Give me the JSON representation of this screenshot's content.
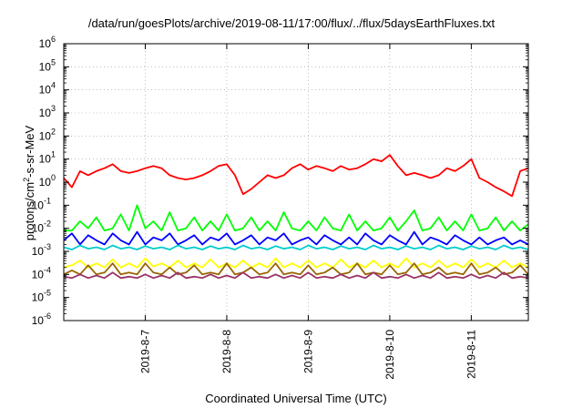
{
  "chart_data": {
    "type": "line",
    "title": "/data/run/goesPlots/archive/2019-08-11/17:00/flux/../flux/5daysEarthFluxes.txt",
    "xlabel": "Coordinated Universal Time (UTC)",
    "ylabel": {
      "prefix": "protons/cm",
      "sup": "2",
      "suffix": "-s-sr-MeV"
    },
    "yscale": "log",
    "ylim": [
      1e-06,
      1000000.0
    ],
    "xlim": [
      0,
      5.7
    ],
    "y_ticks": [
      {
        "exp": -6,
        "label": "10",
        "sup": "-6"
      },
      {
        "exp": -5,
        "label": "10",
        "sup": "-5"
      },
      {
        "exp": -4,
        "label": "10",
        "sup": "-4"
      },
      {
        "exp": -3,
        "label": "10",
        "sup": "-3"
      },
      {
        "exp": -2,
        "label": "10",
        "sup": "-2"
      },
      {
        "exp": -1,
        "label": "10",
        "sup": "-1"
      },
      {
        "exp": 0,
        "label": "10",
        "sup": "0"
      },
      {
        "exp": 1,
        "label": "10",
        "sup": "1"
      },
      {
        "exp": 2,
        "label": "10",
        "sup": "2"
      },
      {
        "exp": 3,
        "label": "10",
        "sup": "3"
      },
      {
        "exp": 4,
        "label": "10",
        "sup": "4"
      },
      {
        "exp": 5,
        "label": "10",
        "sup": "5"
      },
      {
        "exp": 6,
        "label": "10",
        "sup": "6"
      }
    ],
    "x_ticks": [
      {
        "day": 1,
        "label": "2019-8-7"
      },
      {
        "day": 2,
        "label": "2019-8-8"
      },
      {
        "day": 3,
        "label": "2019-8-9"
      },
      {
        "day": 4,
        "label": "2019-8-10"
      },
      {
        "day": 5,
        "label": "2019-8-11"
      }
    ],
    "grid": true,
    "series": [
      {
        "color": "#ff0000",
        "x": [
          0,
          0.1,
          0.2,
          0.3,
          0.4,
          0.5,
          0.6,
          0.7,
          0.8,
          0.9,
          1.0,
          1.1,
          1.2,
          1.3,
          1.4,
          1.5,
          1.6,
          1.7,
          1.8,
          1.9,
          2.0,
          2.1,
          2.2,
          2.3,
          2.4,
          2.5,
          2.6,
          2.7,
          2.8,
          2.9,
          3.0,
          3.1,
          3.2,
          3.3,
          3.4,
          3.5,
          3.6,
          3.7,
          3.8,
          3.9,
          4.0,
          4.1,
          4.2,
          4.3,
          4.4,
          4.5,
          4.6,
          4.7,
          4.8,
          4.9,
          5.0,
          5.1,
          5.2,
          5.3,
          5.4,
          5.5,
          5.6,
          5.7
        ],
        "y": [
          1.5,
          0.6,
          3,
          2,
          3,
          4,
          6,
          3,
          2.5,
          3,
          4,
          5,
          4,
          2,
          1.5,
          1.3,
          1.5,
          2,
          3,
          5,
          6,
          2,
          0.3,
          0.5,
          1,
          2,
          1.5,
          2,
          4,
          6,
          3.5,
          5,
          4,
          3,
          5,
          3.5,
          4,
          6,
          10,
          8,
          15,
          5,
          2,
          2.5,
          2,
          1.5,
          2,
          4,
          3,
          5,
          10,
          1.5,
          1,
          0.6,
          0.4,
          0.25,
          3,
          4
        ]
      },
      {
        "color": "#00ff00",
        "x": [
          0,
          0.1,
          0.2,
          0.3,
          0.4,
          0.5,
          0.6,
          0.7,
          0.8,
          0.9,
          1.0,
          1.1,
          1.2,
          1.3,
          1.4,
          1.5,
          1.6,
          1.7,
          1.8,
          1.9,
          2.0,
          2.1,
          2.2,
          2.3,
          2.4,
          2.5,
          2.6,
          2.7,
          2.8,
          2.9,
          3.0,
          3.1,
          3.2,
          3.3,
          3.4,
          3.5,
          3.6,
          3.7,
          3.8,
          3.9,
          4.0,
          4.1,
          4.2,
          4.3,
          4.4,
          4.5,
          4.6,
          4.7,
          4.8,
          4.9,
          5.0,
          5.1,
          5.2,
          5.3,
          5.4,
          5.5,
          5.6,
          5.7
        ],
        "y": [
          0.008,
          0.008,
          0.02,
          0.01,
          0.03,
          0.008,
          0.01,
          0.04,
          0.008,
          0.1,
          0.01,
          0.02,
          0.008,
          0.05,
          0.008,
          0.01,
          0.03,
          0.008,
          0.02,
          0.008,
          0.04,
          0.008,
          0.01,
          0.03,
          0.008,
          0.02,
          0.008,
          0.05,
          0.01,
          0.008,
          0.02,
          0.008,
          0.03,
          0.01,
          0.008,
          0.04,
          0.008,
          0.02,
          0.008,
          0.01,
          0.03,
          0.008,
          0.02,
          0.06,
          0.008,
          0.01,
          0.03,
          0.008,
          0.02,
          0.008,
          0.04,
          0.008,
          0.01,
          0.03,
          0.008,
          0.02,
          0.008,
          0.015
        ]
      },
      {
        "color": "#0000ff",
        "x": [
          0,
          0.1,
          0.2,
          0.3,
          0.4,
          0.5,
          0.6,
          0.7,
          0.8,
          0.9,
          1.0,
          1.1,
          1.2,
          1.3,
          1.4,
          1.5,
          1.6,
          1.7,
          1.8,
          1.9,
          2.0,
          2.1,
          2.2,
          2.3,
          2.4,
          2.5,
          2.6,
          2.7,
          2.8,
          2.9,
          3.0,
          3.1,
          3.2,
          3.3,
          3.4,
          3.5,
          3.6,
          3.7,
          3.8,
          3.9,
          4.0,
          4.1,
          4.2,
          4.3,
          4.4,
          4.5,
          4.6,
          4.7,
          4.8,
          4.9,
          5.0,
          5.1,
          5.2,
          5.3,
          5.4,
          5.5,
          5.6,
          5.7
        ],
        "y": [
          0.003,
          0.006,
          0.002,
          0.005,
          0.003,
          0.002,
          0.006,
          0.003,
          0.002,
          0.007,
          0.002,
          0.004,
          0.003,
          0.006,
          0.002,
          0.003,
          0.005,
          0.002,
          0.004,
          0.003,
          0.006,
          0.002,
          0.003,
          0.005,
          0.002,
          0.004,
          0.003,
          0.006,
          0.002,
          0.003,
          0.004,
          0.002,
          0.005,
          0.003,
          0.002,
          0.004,
          0.002,
          0.006,
          0.003,
          0.002,
          0.005,
          0.003,
          0.002,
          0.007,
          0.002,
          0.004,
          0.003,
          0.002,
          0.005,
          0.003,
          0.002,
          0.004,
          0.002,
          0.003,
          0.004,
          0.002,
          0.003,
          0.002
        ]
      },
      {
        "color": "#00cccc",
        "x": [
          0,
          0.1,
          0.2,
          0.3,
          0.4,
          0.5,
          0.6,
          0.7,
          0.8,
          0.9,
          1.0,
          1.1,
          1.2,
          1.3,
          1.4,
          1.5,
          1.6,
          1.7,
          1.8,
          1.9,
          2.0,
          2.1,
          2.2,
          2.3,
          2.4,
          2.5,
          2.6,
          2.7,
          2.8,
          2.9,
          3.0,
          3.1,
          3.2,
          3.3,
          3.4,
          3.5,
          3.6,
          3.7,
          3.8,
          3.9,
          4.0,
          4.1,
          4.2,
          4.3,
          4.4,
          4.5,
          4.6,
          4.7,
          4.8,
          4.9,
          5.0,
          5.1,
          5.2,
          5.3,
          5.4,
          5.5,
          5.6,
          5.7
        ],
        "y": [
          0.0015,
          0.0012,
          0.0018,
          0.0013,
          0.0015,
          0.0012,
          0.0018,
          0.0013,
          0.0015,
          0.0012,
          0.0017,
          0.0013,
          0.0015,
          0.0012,
          0.0018,
          0.0013,
          0.0015,
          0.0012,
          0.0017,
          0.0013,
          0.0015,
          0.0012,
          0.0018,
          0.0013,
          0.0015,
          0.0012,
          0.0017,
          0.0013,
          0.0015,
          0.0012,
          0.0018,
          0.0013,
          0.0015,
          0.0012,
          0.0017,
          0.0013,
          0.0015,
          0.0012,
          0.0018,
          0.0013,
          0.0015,
          0.0012,
          0.0017,
          0.0013,
          0.0015,
          0.0012,
          0.0018,
          0.0013,
          0.0015,
          0.0012,
          0.0017,
          0.0013,
          0.0015,
          0.0012,
          0.0018,
          0.0013,
          0.0015,
          0.0012
        ]
      },
      {
        "color": "#ffff00",
        "x": [
          0,
          0.1,
          0.2,
          0.3,
          0.4,
          0.5,
          0.6,
          0.7,
          0.8,
          0.9,
          1.0,
          1.1,
          1.2,
          1.3,
          1.4,
          1.5,
          1.6,
          1.7,
          1.8,
          1.9,
          2.0,
          2.1,
          2.2,
          2.3,
          2.4,
          2.5,
          2.6,
          2.7,
          2.8,
          2.9,
          3.0,
          3.1,
          3.2,
          3.3,
          3.4,
          3.5,
          3.6,
          3.7,
          3.8,
          3.9,
          4.0,
          4.1,
          4.2,
          4.3,
          4.4,
          4.5,
          4.6,
          4.7,
          4.8,
          4.9,
          5.0,
          5.1,
          5.2,
          5.3,
          5.4,
          5.5,
          5.6,
          5.7
        ],
        "y": [
          0.0002,
          0.00025,
          0.0004,
          0.0002,
          0.0003,
          0.0002,
          0.00045,
          0.0002,
          0.0003,
          0.0002,
          0.0005,
          0.00022,
          0.0003,
          0.0002,
          0.0004,
          0.0002,
          0.0003,
          0.0002,
          0.00045,
          0.0002,
          0.0003,
          0.0002,
          0.0004,
          0.0002,
          0.0003,
          0.0002,
          0.0005,
          0.0002,
          0.0003,
          0.0002,
          0.0004,
          0.0002,
          0.0003,
          0.0002,
          0.00045,
          0.0002,
          0.0003,
          0.0002,
          0.0004,
          0.0002,
          0.0003,
          0.0002,
          0.0005,
          0.0002,
          0.0003,
          0.0002,
          0.0004,
          0.0002,
          0.0003,
          0.0002,
          0.00045,
          0.0002,
          0.0003,
          0.0002,
          0.0004,
          0.0002,
          0.0003,
          0.0002
        ]
      },
      {
        "color": "#996600",
        "x": [
          0,
          0.1,
          0.2,
          0.3,
          0.4,
          0.5,
          0.6,
          0.7,
          0.8,
          0.9,
          1.0,
          1.1,
          1.2,
          1.3,
          1.4,
          1.5,
          1.6,
          1.7,
          1.8,
          1.9,
          2.0,
          2.1,
          2.2,
          2.3,
          2.4,
          2.5,
          2.6,
          2.7,
          2.8,
          2.9,
          3.0,
          3.1,
          3.2,
          3.3,
          3.4,
          3.5,
          3.6,
          3.7,
          3.8,
          3.9,
          4.0,
          4.1,
          4.2,
          4.3,
          4.4,
          4.5,
          4.6,
          4.7,
          4.8,
          4.9,
          5.0,
          5.1,
          5.2,
          5.3,
          5.4,
          5.5,
          5.6,
          5.7
        ],
        "y": [
          0.0001,
          0.00015,
          0.0001,
          0.00025,
          0.0001,
          0.00012,
          0.0003,
          0.0001,
          0.00012,
          0.0001,
          0.0003,
          0.00012,
          0.0001,
          0.0002,
          0.0001,
          0.00012,
          0.00025,
          0.0001,
          0.00012,
          0.0001,
          0.0003,
          0.0001,
          0.00012,
          0.0002,
          0.0001,
          0.00012,
          0.0003,
          0.0001,
          0.00012,
          0.0001,
          0.00025,
          0.0001,
          0.00012,
          0.0002,
          0.0001,
          0.00012,
          0.0003,
          0.0001,
          0.00012,
          0.0001,
          0.00025,
          0.0001,
          0.00012,
          0.0003,
          0.0001,
          0.00012,
          0.0002,
          0.0001,
          0.00012,
          0.0001,
          0.0003,
          0.0001,
          0.00012,
          0.0002,
          0.0001,
          0.00012,
          0.00025,
          0.0001
        ]
      },
      {
        "color": "#993366",
        "x": [
          0,
          0.1,
          0.2,
          0.3,
          0.4,
          0.5,
          0.6,
          0.7,
          0.8,
          0.9,
          1.0,
          1.1,
          1.2,
          1.3,
          1.4,
          1.5,
          1.6,
          1.7,
          1.8,
          1.9,
          2.0,
          2.1,
          2.2,
          2.3,
          2.4,
          2.5,
          2.6,
          2.7,
          2.8,
          2.9,
          3.0,
          3.1,
          3.2,
          3.3,
          3.4,
          3.5,
          3.6,
          3.7,
          3.8,
          3.9,
          4.0,
          4.1,
          4.2,
          4.3,
          4.4,
          4.5,
          4.6,
          4.7,
          4.8,
          4.9,
          5.0,
          5.1,
          5.2,
          5.3,
          5.4,
          5.5,
          5.6,
          5.7
        ],
        "y": [
          8e-05,
          7e-05,
          0.0001,
          7e-05,
          9e-05,
          7e-05,
          0.00012,
          7e-05,
          8e-05,
          7e-05,
          0.0001,
          7e-05,
          9e-05,
          7e-05,
          0.00012,
          7e-05,
          8e-05,
          7e-05,
          0.0001,
          7e-05,
          9e-05,
          7e-05,
          0.00012,
          7e-05,
          8e-05,
          7e-05,
          0.0001,
          7e-05,
          9e-05,
          7e-05,
          0.00012,
          7e-05,
          8e-05,
          7e-05,
          0.0001,
          7e-05,
          9e-05,
          7e-05,
          0.00012,
          7e-05,
          8e-05,
          7e-05,
          0.0001,
          7e-05,
          9e-05,
          7e-05,
          0.00012,
          7e-05,
          8e-05,
          7e-05,
          0.0001,
          7e-05,
          9e-05,
          7e-05,
          0.00012,
          7e-05,
          8e-05,
          7e-05
        ]
      }
    ]
  }
}
